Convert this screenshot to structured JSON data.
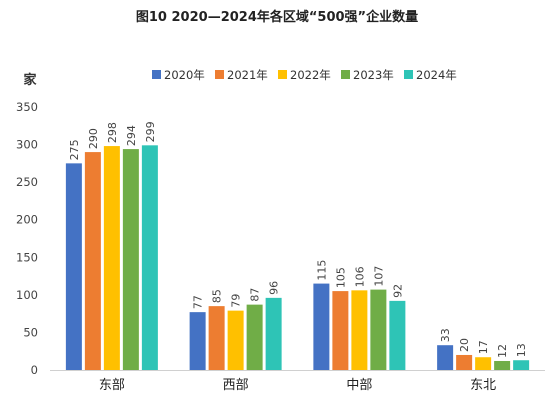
{
  "chart_data": {
    "type": "bar",
    "title": "图10 2020—2024年各区域“500强”企业数量",
    "ylabel": "家",
    "xlabel": "",
    "ylim": [
      0,
      350
    ],
    "yticks": [
      0,
      50,
      100,
      150,
      200,
      250,
      300,
      350
    ],
    "grid": false,
    "legend_position": "top",
    "categories": [
      "东部",
      "西部",
      "中部",
      "东北"
    ],
    "series": [
      {
        "name": "2020年",
        "color": "#4472C4",
        "values": [
          275,
          77,
          115,
          33
        ]
      },
      {
        "name": "2021年",
        "color": "#ED7D31",
        "values": [
          290,
          85,
          105,
          20
        ]
      },
      {
        "name": "2022年",
        "color": "#FFC000",
        "values": [
          298,
          79,
          106,
          17
        ]
      },
      {
        "name": "2023年",
        "color": "#70AD47",
        "values": [
          294,
          87,
          107,
          12
        ]
      },
      {
        "name": "2024年",
        "color": "#2EC4B6",
        "values": [
          299,
          96,
          92,
          13
        ]
      }
    ]
  }
}
